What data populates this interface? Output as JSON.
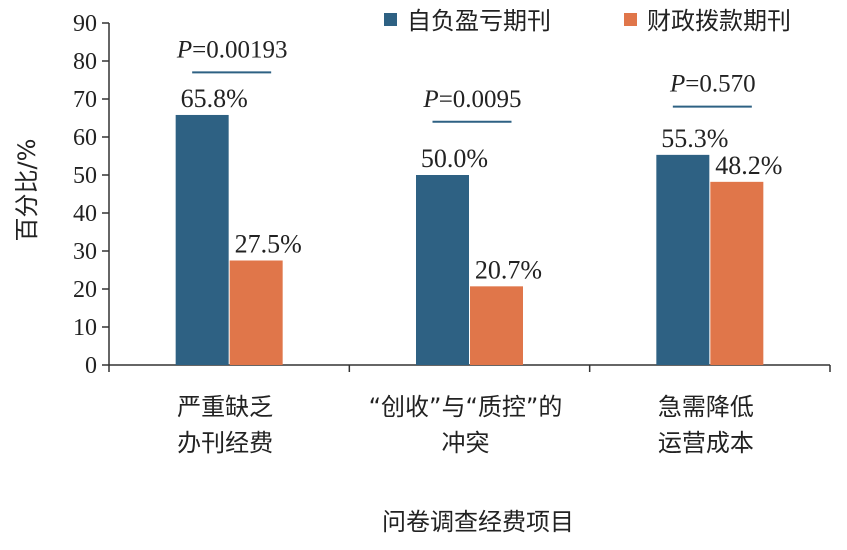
{
  "chart_data": {
    "type": "bar",
    "title": "",
    "xlabel": "问卷调查经费项目",
    "ylabel": "百分比/%",
    "ylim": [
      0,
      90
    ],
    "yticks": [
      0,
      10,
      20,
      30,
      40,
      50,
      60,
      70,
      80,
      90
    ],
    "grid": false,
    "legend_position": "top-right",
    "categories": [
      [
        "严重缺乏",
        "办刊经费"
      ],
      [
        "“创收”与“质控”的",
        "冲突"
      ],
      [
        "急需降低",
        "运营成本"
      ]
    ],
    "series": [
      {
        "name": "自负盈亏期刊",
        "color": "#2e6183",
        "values": [
          65.8,
          50.0,
          55.3
        ],
        "labels": [
          "65.8%",
          "50.0%",
          "55.3%"
        ]
      },
      {
        "name": "财政拨款期刊",
        "color": "#e0764a",
        "values": [
          27.5,
          20.7,
          48.2
        ],
        "labels": [
          "27.5%",
          "20.7%",
          "48.2%"
        ]
      }
    ],
    "annotations": [
      {
        "p_symbol": "P",
        "text": "=0.00193",
        "level": 77
      },
      {
        "p_symbol": "P",
        "text": "=0.0095",
        "level": 64
      },
      {
        "p_symbol": "P",
        "text": "=0.570",
        "level": 68
      }
    ],
    "annotation_line_color": "#2e6183"
  }
}
